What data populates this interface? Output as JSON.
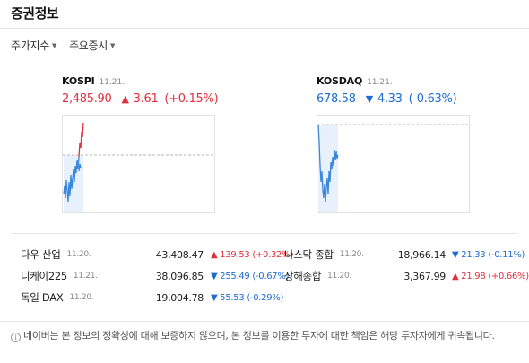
{
  "header": {
    "title": "증권정보"
  },
  "tabs": [
    {
      "label": "주가지수"
    },
    {
      "label": "주요증시"
    }
  ],
  "indices": [
    {
      "name": "KOSPI",
      "date": "11.21.",
      "value": "2,485.90",
      "direction": "up",
      "arrow": "▲",
      "change": "3.61",
      "pct": "(+0.15%)",
      "color": "#e0313d"
    },
    {
      "name": "KOSDAQ",
      "date": "11.21.",
      "value": "678.58",
      "direction": "down",
      "arrow": "▼",
      "change": "4.33",
      "pct": "(-0.63%)",
      "color": "#1f6dd1"
    }
  ],
  "world": [
    {
      "name": "다우 산업",
      "date": "11.20.",
      "value": "43,408.47",
      "arrow": "▲",
      "change": "139.53",
      "pct": "(+0.32%)",
      "direction": "up"
    },
    {
      "name": "나스닥 종합",
      "date": "11.20.",
      "value": "18,966.14",
      "arrow": "▼",
      "change": "21.33",
      "pct": "(-0.11%)",
      "direction": "down"
    },
    {
      "name": "니케이225",
      "date": "11.21.",
      "value": "38,096.85",
      "arrow": "▼",
      "change": "255.49",
      "pct": "(-0.67%)",
      "direction": "down"
    },
    {
      "name": "상해종합",
      "date": "11.20.",
      "value": "3,367.99",
      "arrow": "▲",
      "change": "21.98",
      "pct": "(+0.66%)",
      "direction": "up"
    },
    {
      "name": "독일 DAX",
      "date": "11.20.",
      "value": "19,004.78",
      "arrow": "▼",
      "change": "55.53",
      "pct": "(-0.29%)",
      "direction": "down"
    }
  ],
  "notice": {
    "icon": "info-icon",
    "text": "네이버는 본 정보의 정확성에 대해 보증하지 않으며, 본 정보를 이용한 투자에 대한 책임은 해당 투자자에게 귀속됩니다."
  }
}
